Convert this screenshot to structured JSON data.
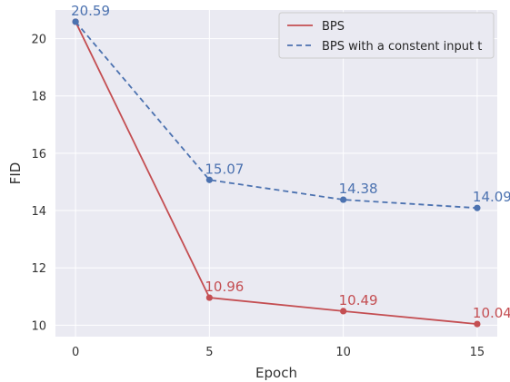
{
  "chart_data": {
    "type": "line",
    "title": "",
    "xlabel": "Epoch",
    "ylabel": "FID",
    "x": [
      0,
      5,
      10,
      15
    ],
    "xticks": [
      "0",
      "5",
      "10",
      "15"
    ],
    "yticks": [
      "10",
      "12",
      "14",
      "16",
      "18",
      "20"
    ],
    "xlim": [
      -0.75,
      15.75
    ],
    "ylim": [
      9.6,
      21.0
    ],
    "grid": true,
    "legend_position": "top-right",
    "series": [
      {
        "name": "BPS",
        "values": [
          20.59,
          10.96,
          10.49,
          10.04
        ],
        "labels": [
          "",
          "10.96",
          "10.49",
          "10.04"
        ],
        "color": "#c44e52",
        "style": "solid"
      },
      {
        "name": "BPS with a constent input t",
        "values": [
          20.59,
          15.07,
          14.38,
          14.09
        ],
        "labels": [
          "20.59",
          "15.07",
          "14.38",
          "14.09"
        ],
        "color": "#4c72b0",
        "style": "dashed"
      }
    ]
  }
}
